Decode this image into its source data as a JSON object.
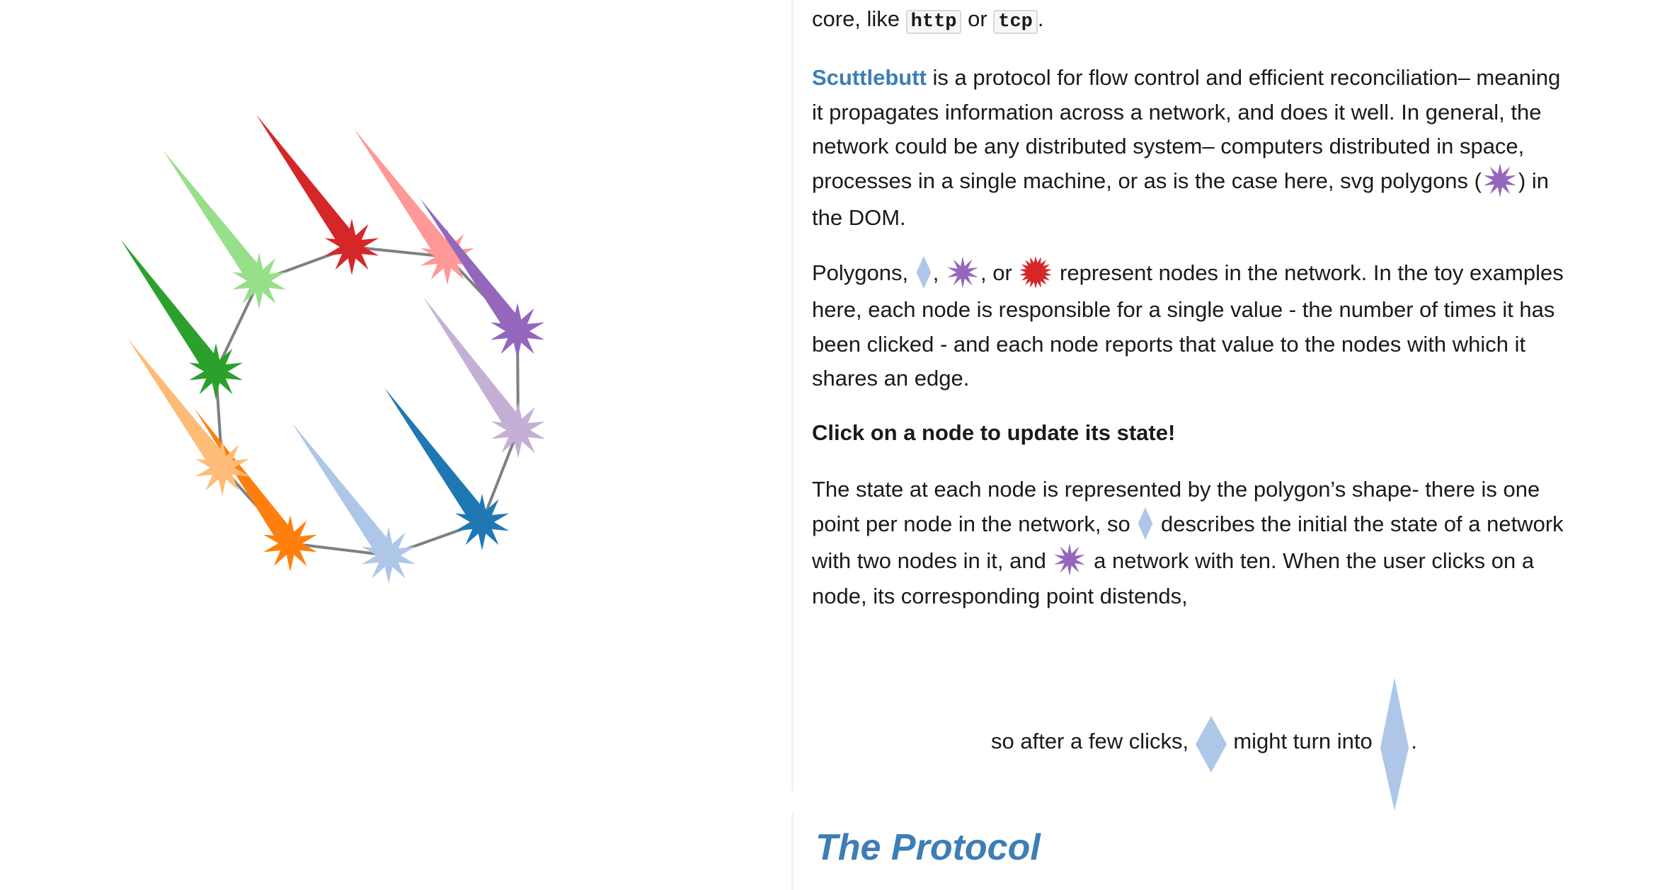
{
  "intro_line": {
    "prefix": "core, like ",
    "code_http": "http",
    "middle": " or ",
    "code_tcp": "tcp",
    "suffix": "."
  },
  "paragraph1": {
    "link": "Scuttlebutt",
    "line1": " is a protocol for flow control and efficient reconciliation– meaning",
    "line2": "it propagates information across a network, and does it well. In general, the",
    "line3": "network could be any distributed system– computers distributed in space,",
    "line4_a": "processes in a single machine, or as is the case here, svg polygons (",
    "line4_b": ") in",
    "line5": "the DOM."
  },
  "paragraph2": {
    "line1_a": "Polygons, ",
    "line1_b": ", ",
    "line1_c": ", or ",
    "line1_d": " represent nodes in the network. In the toy examples",
    "line2": "here, each node is responsible for a single value - the number of times it has",
    "line3": "been clicked - and each node reports that value to the nodes with which it",
    "line4": "shares an edge."
  },
  "callout": "Click on a node to update its state!",
  "paragraph3": {
    "line1": "The state at each node is represented by the polygon’s shape- there is one",
    "line2_a": "point per node in the network, so ",
    "line2_b": " describes the initial the state of a network",
    "line3_a": "with two nodes in it, and ",
    "line3_b": " a network with ten. When the user clicks on a",
    "line4": "node, its corresponding point distends,"
  },
  "example_line": {
    "a": "so after a few clicks, ",
    "b": " might turn into ",
    "c": "."
  },
  "section_heading": "The Protocol",
  "colors": {
    "link": "#3d7eb5",
    "edge": "#808080",
    "icon_diamond": "#aec7e8",
    "icon_purple": "#9467bd",
    "icon_red": "#d62728"
  },
  "network": {
    "nodes": [
      {
        "name": "dark-red",
        "color": "#d62728"
      },
      {
        "name": "pink",
        "color": "#ff9896"
      },
      {
        "name": "purple",
        "color": "#9467bd"
      },
      {
        "name": "lavender",
        "color": "#c5b0d5"
      },
      {
        "name": "blue",
        "color": "#1f77b4"
      },
      {
        "name": "light-blue",
        "color": "#aec7e8"
      },
      {
        "name": "orange",
        "color": "#ff7f0e"
      },
      {
        "name": "light-orange",
        "color": "#ffbb78"
      },
      {
        "name": "green",
        "color": "#2ca02c"
      },
      {
        "name": "light-green",
        "color": "#98df8a"
      }
    ]
  }
}
